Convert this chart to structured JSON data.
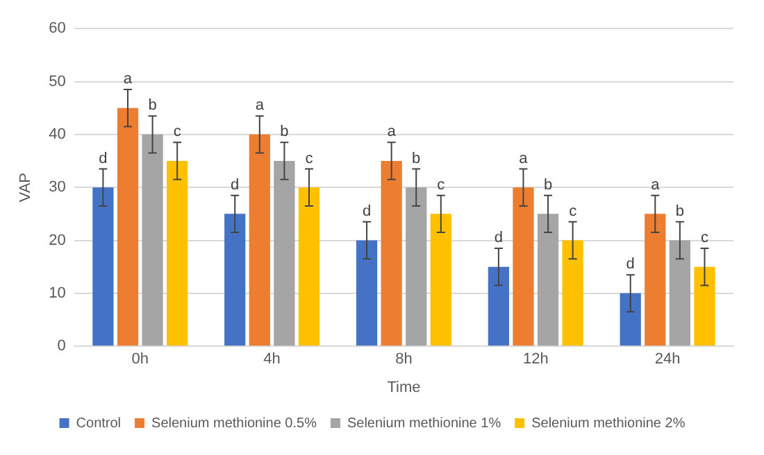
{
  "chart_data": {
    "type": "bar",
    "xlabel": "Time",
    "ylabel": "VAP",
    "categories": [
      "0h",
      "4h",
      "8h",
      "12h",
      "24h"
    ],
    "series": [
      {
        "name": "Control",
        "color": "#4472c4",
        "values": [
          30,
          25,
          20,
          15,
          10
        ],
        "errors": [
          3.5,
          3.5,
          3.5,
          3.5,
          3.5
        ],
        "value_labels": [
          "d",
          "d",
          "d",
          "d",
          "d"
        ]
      },
      {
        "name": "Selenium methionine 0.5%",
        "color": "#ed7d31",
        "values": [
          45,
          40,
          35,
          30,
          25
        ],
        "errors": [
          3.5,
          3.5,
          3.5,
          3.5,
          3.5
        ],
        "value_labels": [
          "a",
          "a",
          "a",
          "a",
          "a"
        ]
      },
      {
        "name": "Selenium methionine 1%",
        "color": "#a5a5a5",
        "values": [
          40,
          35,
          30,
          25,
          20
        ],
        "errors": [
          3.5,
          3.5,
          3.5,
          3.5,
          3.5
        ],
        "value_labels": [
          "b",
          "b",
          "b",
          "b",
          "b"
        ]
      },
      {
        "name": "Selenium methionine 2%",
        "color": "#ffc000",
        "values": [
          35,
          30,
          25,
          20,
          15
        ],
        "errors": [
          3.5,
          3.5,
          3.5,
          3.5,
          3.5
        ],
        "value_labels": [
          "c",
          "c",
          "c",
          "c",
          "c"
        ]
      }
    ],
    "ylim": [
      0,
      60
    ],
    "yticks": [
      0,
      10,
      20,
      30,
      40,
      50,
      60
    ],
    "grid": "y",
    "legend": "bottom"
  }
}
